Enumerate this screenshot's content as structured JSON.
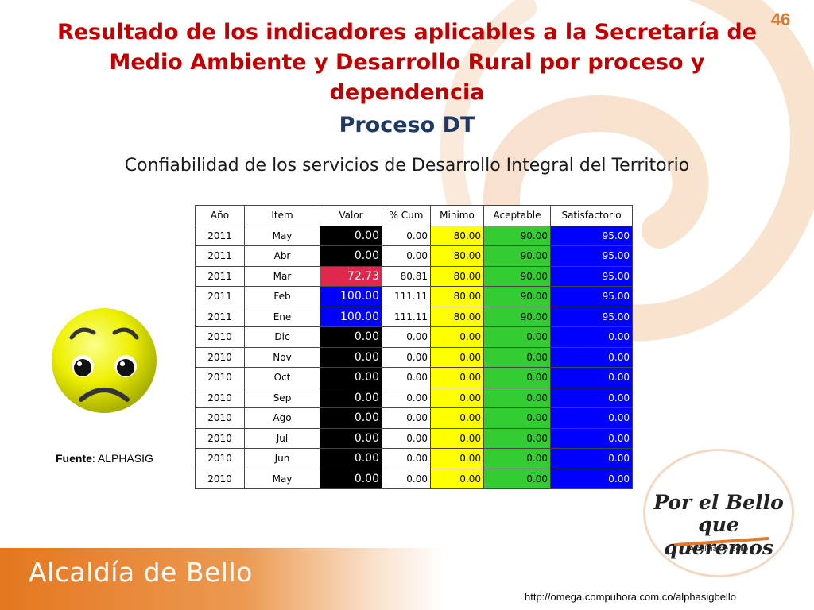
{
  "page_number": "46",
  "title_lines": [
    "Resultado de los indicadores aplicables a la Secretaría de",
    "Medio Ambiente y Desarrollo Rural  por proceso y",
    "dependencia"
  ],
  "subtitle": "Proceso DT",
  "indicator_name": "Confiabilidad de los servicios de Desarrollo Integral del Territorio",
  "table": {
    "headers": [
      "Año",
      "Item",
      "Valor",
      "% Cum",
      "Minimo",
      "Aceptable",
      "Satisfactorio"
    ],
    "rows": [
      {
        "year": "2011",
        "item": "May",
        "valor": "0.00",
        "valor_color": "black",
        "cum": "0.00",
        "min": "80.00",
        "acc": "90.00",
        "sat": "95.00"
      },
      {
        "year": "2011",
        "item": "Abr",
        "valor": "0.00",
        "valor_color": "black",
        "cum": "0.00",
        "min": "80.00",
        "acc": "90.00",
        "sat": "95.00"
      },
      {
        "year": "2011",
        "item": "Mar",
        "valor": "72.73",
        "valor_color": "red",
        "cum": "80.81",
        "min": "80.00",
        "acc": "90.00",
        "sat": "95.00"
      },
      {
        "year": "2011",
        "item": "Feb",
        "valor": "100.00",
        "valor_color": "blue",
        "cum": "111.11",
        "min": "80.00",
        "acc": "90.00",
        "sat": "95.00"
      },
      {
        "year": "2011",
        "item": "Ene",
        "valor": "100.00",
        "valor_color": "blue",
        "cum": "111.11",
        "min": "80.00",
        "acc": "90.00",
        "sat": "95.00"
      },
      {
        "year": "2010",
        "item": "Dic",
        "valor": "0.00",
        "valor_color": "black",
        "cum": "0.00",
        "min": "0.00",
        "acc": "0.00",
        "sat": "0.00"
      },
      {
        "year": "2010",
        "item": "Nov",
        "valor": "0.00",
        "valor_color": "black",
        "cum": "0.00",
        "min": "0.00",
        "acc": "0.00",
        "sat": "0.00"
      },
      {
        "year": "2010",
        "item": "Oct",
        "valor": "0.00",
        "valor_color": "black",
        "cum": "0.00",
        "min": "0.00",
        "acc": "0.00",
        "sat": "0.00"
      },
      {
        "year": "2010",
        "item": "Sep",
        "valor": "0.00",
        "valor_color": "black",
        "cum": "0.00",
        "min": "0.00",
        "acc": "0.00",
        "sat": "0.00"
      },
      {
        "year": "2010",
        "item": "Ago",
        "valor": "0.00",
        "valor_color": "black",
        "cum": "0.00",
        "min": "0.00",
        "acc": "0.00",
        "sat": "0.00"
      },
      {
        "year": "2010",
        "item": "Jul",
        "valor": "0.00",
        "valor_color": "black",
        "cum": "0.00",
        "min": "0.00",
        "acc": "0.00",
        "sat": "0.00"
      },
      {
        "year": "2010",
        "item": "Jun",
        "valor": "0.00",
        "valor_color": "black",
        "cum": "0.00",
        "min": "0.00",
        "acc": "0.00",
        "sat": "0.00"
      },
      {
        "year": "2010",
        "item": "May",
        "valor": "0.00",
        "valor_color": "black",
        "cum": "0.00",
        "min": "0.00",
        "acc": "0.00",
        "sat": "0.00"
      }
    ]
  },
  "source": {
    "label": "Fuente",
    "value": ": ALPHASIG"
  },
  "badge": {
    "line1": "Por el Bello",
    "line2": "que queremos",
    "caption": "Alcaldía de Bello"
  },
  "footer": {
    "logo_text": "Alcaldía de Bello",
    "url": "http://omega.compuhora.com.co/alphasigbello"
  },
  "icons": {
    "smiley": "sad-face-icon",
    "badge": "logo-badge-icon"
  },
  "colors": {
    "title": "#c00000",
    "subtitle": "#1f3864",
    "minimo": "#ffff00",
    "aceptable": "#33cc33",
    "satisfactorio": "#0000ff",
    "valor_black": "#000000",
    "valor_red": "#e0284d",
    "valor_blue": "#0000ff",
    "accent_orange": "#e07a2e"
  }
}
